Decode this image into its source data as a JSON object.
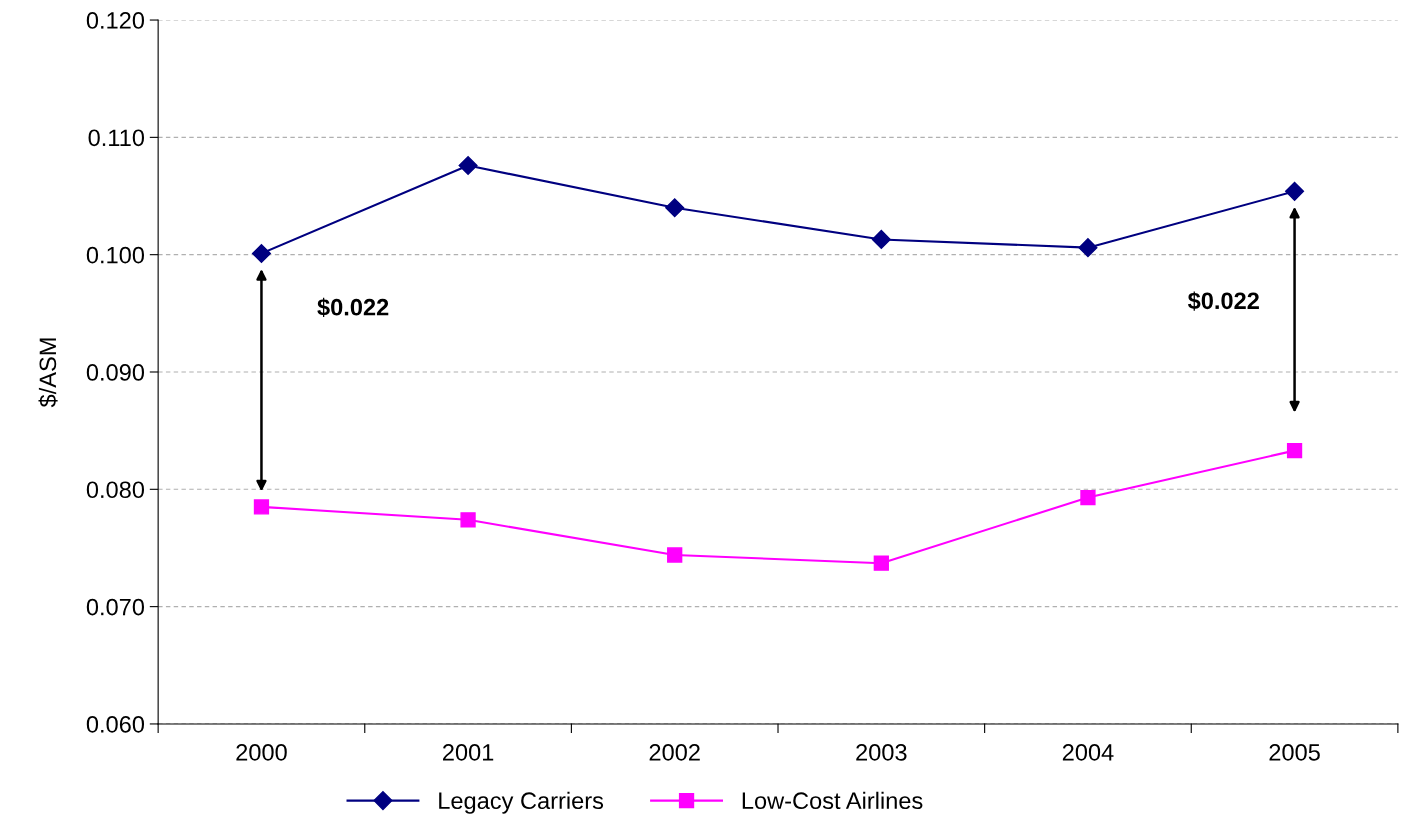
{
  "chart_data": {
    "type": "line",
    "ylabel": "$/ASM",
    "categories": [
      "2000",
      "2001",
      "2002",
      "2003",
      "2004",
      "2005"
    ],
    "series": [
      {
        "name": "Legacy Carriers",
        "color": "#000080",
        "marker": "diamond",
        "values": [
          0.1001,
          0.1076,
          0.104,
          0.1013,
          0.1006,
          0.1054
        ]
      },
      {
        "name": "Low-Cost Airlines",
        "color": "#ff00ff",
        "marker": "square",
        "values": [
          0.0785,
          0.0774,
          0.0744,
          0.0737,
          0.0793,
          0.0833
        ]
      }
    ],
    "ylim": [
      0.06,
      0.12
    ],
    "yticks": [
      {
        "value": 0.06,
        "label": "0.060"
      },
      {
        "value": 0.07,
        "label": "0.070"
      },
      {
        "value": 0.08,
        "label": "0.080"
      },
      {
        "value": 0.09,
        "label": "0.090"
      },
      {
        "value": 0.1,
        "label": "0.100"
      },
      {
        "value": 0.11,
        "label": "0.110"
      },
      {
        "value": 0.12,
        "label": "0.120"
      }
    ],
    "grid": "y",
    "legend": "bottom",
    "line_style": "solid",
    "annotations": [
      "$0.022",
      "$0.022"
    ]
  }
}
